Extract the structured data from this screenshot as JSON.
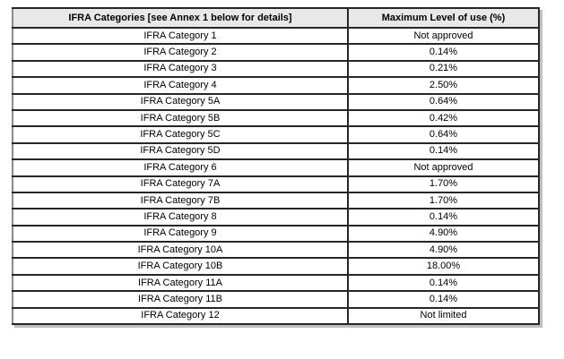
{
  "table": {
    "headers": {
      "category": "IFRA Categories [see Annex 1 below for details]",
      "max_level": "Maximum Level of use (%)"
    },
    "rows": [
      {
        "category": "IFRA Category 1",
        "max_level": "Not approved"
      },
      {
        "category": "IFRA Category 2",
        "max_level": "0.14%"
      },
      {
        "category": "IFRA Category 3",
        "max_level": "0.21%"
      },
      {
        "category": "IFRA Category 4",
        "max_level": "2.50%"
      },
      {
        "category": "IFRA Category 5A",
        "max_level": "0.64%"
      },
      {
        "category": "IFRA Category 5B",
        "max_level": "0.42%"
      },
      {
        "category": "IFRA Category 5C",
        "max_level": "0.64%"
      },
      {
        "category": "IFRA Category 5D",
        "max_level": "0.14%"
      },
      {
        "category": "IFRA Category 6",
        "max_level": "Not approved"
      },
      {
        "category": "IFRA Category 7A",
        "max_level": "1.70%"
      },
      {
        "category": "IFRA Category 7B",
        "max_level": "1.70%"
      },
      {
        "category": "IFRA Category 8",
        "max_level": "0.14%"
      },
      {
        "category": "IFRA Category 9",
        "max_level": "4.90%"
      },
      {
        "category": "IFRA Category 10A",
        "max_level": "4.90%"
      },
      {
        "category": "IFRA Category 10B",
        "max_level": "18.00%"
      },
      {
        "category": "IFRA Category 11A",
        "max_level": "0.14%"
      },
      {
        "category": "IFRA Category 11B",
        "max_level": "0.14%"
      },
      {
        "category": "IFRA Category 12",
        "max_level": "Not limited"
      }
    ]
  },
  "colors": {
    "header_bg": "#e8e8e8",
    "border": "#262626",
    "outer_left_border": "#8a8a8a",
    "shadow": "#bfbfbf",
    "text": "#000000",
    "page_bg": "#ffffff"
  }
}
